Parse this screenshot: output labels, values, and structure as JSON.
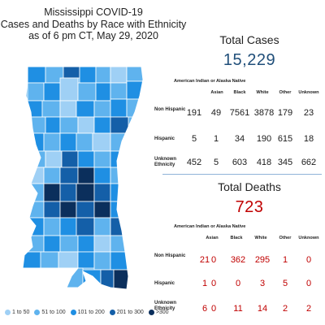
{
  "title": {
    "line1": "Mississippi COVID-19",
    "line2": "Cases and Deaths by Race with Ethnicity",
    "line3": "as of 6 pm CT, May 29, 2020"
  },
  "legend": [
    {
      "label": "1 to 50",
      "color": "#9fd0f5"
    },
    {
      "label": "51 to 100",
      "color": "#5fb3ee"
    },
    {
      "label": "101 to 200",
      "color": "#1f8fe3"
    },
    {
      "label": "201 to 300",
      "color": "#145fa8"
    },
    {
      "label": ">300",
      "color": "#0b2f5c"
    }
  ],
  "cases": {
    "heading": "Total Cases",
    "total": "15,229",
    "columns": [
      "American Indian or Alaska Native",
      "Asian",
      "Black",
      "White",
      "Other",
      "Unknown"
    ],
    "rows": [
      {
        "label": "Non Hispanic",
        "values": [
          "191",
          "49",
          "7561",
          "3878",
          "179",
          "23"
        ]
      },
      {
        "label": "Hispanic",
        "values": [
          "5",
          "1",
          "34",
          "190",
          "615",
          "18"
        ]
      },
      {
        "label": "Unknown Ethnicity",
        "values": [
          "452",
          "5",
          "603",
          "418",
          "345",
          "662"
        ]
      }
    ]
  },
  "deaths": {
    "heading": "Total Deaths",
    "total": "723",
    "columns": [
      "American Indian or Alaska Native",
      "Asian",
      "Black",
      "White",
      "Other",
      "Unknown"
    ],
    "rows": [
      {
        "label": "Non Hispanic",
        "values": [
          "21",
          "0",
          "362",
          "295",
          "1",
          "0"
        ]
      },
      {
        "label": "Hispanic",
        "values": [
          "1",
          "0",
          "0",
          "3",
          "5",
          "0"
        ]
      },
      {
        "label": "Unknown Ethnicity",
        "values": [
          "6",
          "0",
          "11",
          "14",
          "2",
          "2"
        ]
      }
    ]
  },
  "colors": {
    "cases_accent": "#1f4e79",
    "deaths_accent": "#c00000",
    "divider": "#8fb4d8"
  }
}
